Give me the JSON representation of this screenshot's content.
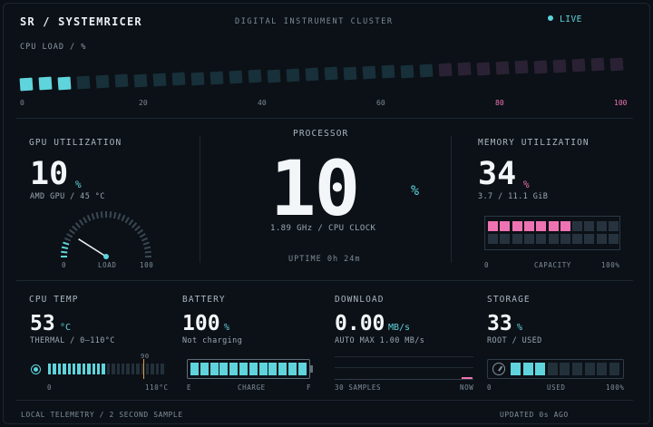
{
  "header": {
    "brand": "SR / SYSTEMRICER",
    "subtitle": "DIGITAL INSTRUMENT CLUSTER",
    "live_label": "LIVE"
  },
  "cpu_load": {
    "label": "CPU LOAD / %",
    "value_fraction": 0.1,
    "segments": 32,
    "ticks": [
      "0",
      "20",
      "40",
      "60",
      "80",
      "100"
    ]
  },
  "gpu": {
    "title": "GPU UTILIZATION",
    "value": "10",
    "unit": "%",
    "detail": "AMD GPU / 45 °C",
    "gauge_min": "0",
    "gauge_max": "100",
    "gauge_label": "LOAD",
    "gauge_fraction": 0.1
  },
  "processor": {
    "title": "PROCESSOR",
    "value": "10",
    "unit": "%",
    "clock": "1.89 GHz  /  CPU CLOCK",
    "uptime": "UPTIME  0h 24m"
  },
  "memory": {
    "title": "MEMORY UTILIZATION",
    "value": "34",
    "unit": "%",
    "detail": "3.7 / 11.1 GiB",
    "grid_filled": 7,
    "grid_total": 22,
    "scale_min": "0",
    "scale_label": "CAPACITY",
    "scale_max": "100%"
  },
  "cpu_temp": {
    "title": "CPU TEMP",
    "value": "53",
    "unit": "°C",
    "detail": "THERMAL / 0–110°C",
    "marker_label": "90",
    "scale_min": "0",
    "scale_max": "110°C",
    "segments": 24,
    "filled": 12
  },
  "battery": {
    "title": "BATTERY",
    "value": "100",
    "unit": "%",
    "detail": "Not charging",
    "segments": 12,
    "filled": 12,
    "scale_left": "E",
    "scale_label": "CHARGE",
    "scale_right": "F"
  },
  "download": {
    "title": "DOWNLOAD",
    "value": "0.00",
    "unit": "MB/s",
    "detail": "AUTO MAX 1.00 MB/s",
    "scale_left": "30 SAMPLES",
    "scale_right": "NOW"
  },
  "storage": {
    "title": "STORAGE",
    "value": "33",
    "unit": "%",
    "detail": "ROOT / USED",
    "segments": 9,
    "filled": 3,
    "scale_min": "0",
    "scale_label": "USED",
    "scale_max": "100%"
  },
  "footer": {
    "left": "LOCAL TELEMETRY  /  2 SECOND SAMPLE",
    "right": "UPDATED 0s AGO"
  },
  "colors": {
    "accent": "#5fd4dc",
    "pink": "#ef73b2",
    "segment_off": "#1c2a33",
    "orange": "#e39a44"
  }
}
